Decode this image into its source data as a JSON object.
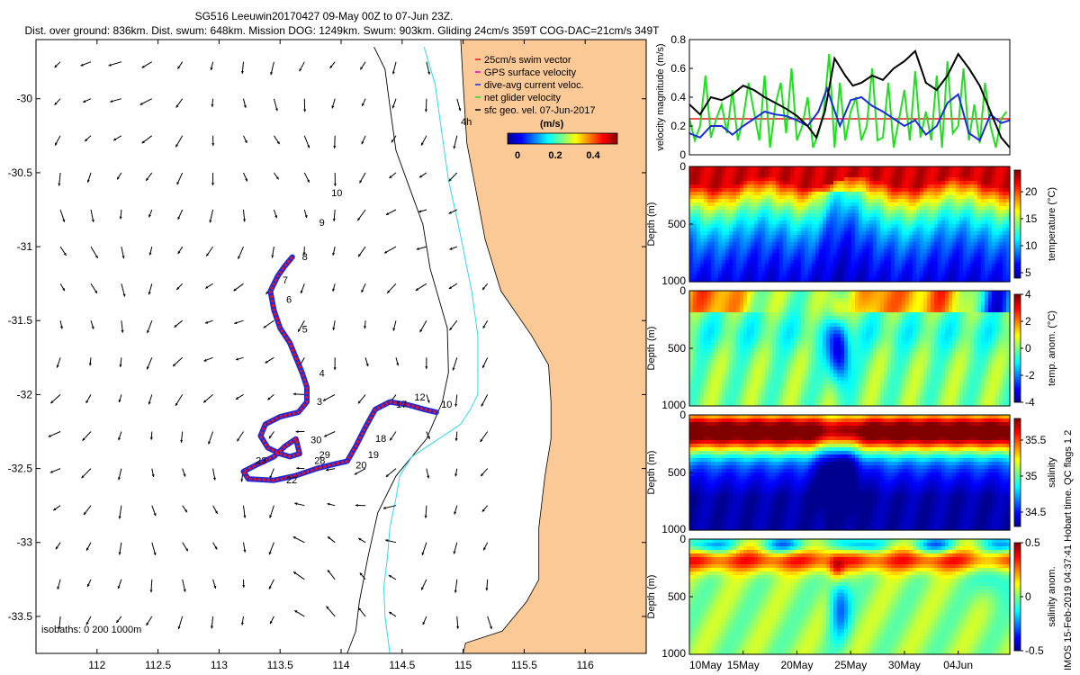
{
  "title": {
    "line1": "SG516 Leeuwin20170427 09-May 00Z to 07-Jun 23Z.",
    "line2": "Dist. over ground: 836km. Dist. swum: 648km. Mission DOG: 1249km. Swum: 903km. Gliding 24cm/s 359T COG-DAC=21cm/s 349T"
  },
  "colors": {
    "land": "#fbc996",
    "ocean": "#ffffff",
    "swim": "#e8141c",
    "gps": "#e000e0",
    "dac": "#1a2adc",
    "net": "#22dd22",
    "geo": "#000000",
    "isobath_200": "#35d7e8",
    "isobath_1000": "#000000",
    "ref_line": "#e8141c"
  },
  "side_text": "IMOS 15-Feb-2019 04:37:41 Hobart time. QC flags 1  2",
  "chart_data": [
    {
      "id": "map",
      "type": "scatter",
      "title": "",
      "xlim": [
        111.5,
        116.5
      ],
      "ylim": [
        -33.75,
        -29.6
      ],
      "x_ticks": [
        112,
        112.5,
        113,
        113.5,
        114,
        114.5,
        115,
        115.5,
        116
      ],
      "x_tick_labels": [
        "112",
        "112.5",
        "113",
        "113.5",
        "114",
        "114.5",
        "115",
        "115.5",
        "116"
      ],
      "y_ticks": [
        -30,
        -30.5,
        -31,
        -31.5,
        -32,
        -32.5,
        -33,
        -33.5
      ],
      "y_tick_labels": [
        "-30",
        "-30.5",
        "-31",
        "-31.5",
        "-32",
        "-32.5",
        "-33",
        "-33.5"
      ],
      "legend": {
        "placement": "top-right",
        "items": [
          "25cm/s swim vector",
          "GPS surface velocity",
          "dive-avg current veloc.",
          "net glider velocity",
          "sfc geo. vel. 07-Jun-2017"
        ]
      },
      "colorbar": {
        "interval_label": "4h",
        "unit_label": "(m/s)",
        "tick_labels": [
          "0",
          "0.2",
          "0.4"
        ],
        "range": [
          0,
          0.5
        ]
      },
      "isobaths_label": "isobaths: 0   200  1000m",
      "coastline": [
        [
          116.5,
          -29.6
        ],
        [
          114.98,
          -29.6
        ],
        [
          115.0,
          -29.9
        ],
        [
          115.03,
          -30.3
        ],
        [
          115.1,
          -30.6
        ],
        [
          115.18,
          -30.95
        ],
        [
          115.31,
          -31.3
        ],
        [
          115.56,
          -31.6
        ],
        [
          115.7,
          -31.8
        ],
        [
          115.72,
          -32.05
        ],
        [
          115.72,
          -32.3
        ],
        [
          115.67,
          -32.55
        ],
        [
          115.62,
          -32.9
        ],
        [
          115.62,
          -33.25
        ],
        [
          115.52,
          -33.4
        ],
        [
          115.32,
          -33.6
        ],
        [
          115.02,
          -33.68
        ],
        [
          115.0,
          -33.75
        ],
        [
          116.5,
          -33.75
        ]
      ],
      "isobath_200": [
        [
          114.68,
          -29.65
        ],
        [
          114.77,
          -29.9
        ],
        [
          114.82,
          -30.2
        ],
        [
          114.88,
          -30.55
        ],
        [
          114.96,
          -30.85
        ],
        [
          115.07,
          -31.3
        ],
        [
          115.12,
          -31.6
        ],
        [
          115.12,
          -31.9
        ],
        [
          115.12,
          -32.0
        ],
        [
          115.06,
          -32.1
        ],
        [
          114.98,
          -32.2
        ],
        [
          114.8,
          -32.3
        ],
        [
          114.58,
          -32.42
        ],
        [
          114.48,
          -32.55
        ],
        [
          114.45,
          -32.7
        ],
        [
          114.4,
          -32.9
        ],
        [
          114.38,
          -33.1
        ],
        [
          114.35,
          -33.3
        ],
        [
          114.36,
          -33.5
        ],
        [
          114.4,
          -33.75
        ]
      ],
      "isobath_1000": [
        [
          114.27,
          -29.65
        ],
        [
          114.36,
          -29.8
        ],
        [
          114.4,
          -30.05
        ],
        [
          114.45,
          -30.35
        ],
        [
          114.56,
          -30.6
        ],
        [
          114.67,
          -30.85
        ],
        [
          114.73,
          -31.15
        ],
        [
          114.87,
          -31.55
        ],
        [
          114.88,
          -31.85
        ],
        [
          114.83,
          -32.05
        ],
        [
          114.7,
          -32.3
        ],
        [
          114.45,
          -32.55
        ],
        [
          114.3,
          -32.8
        ],
        [
          114.22,
          -33.1
        ],
        [
          114.15,
          -33.4
        ],
        [
          114.12,
          -33.6
        ],
        [
          114.05,
          -33.75
        ]
      ],
      "glider_track": [
        [
          113.6,
          -31.07
        ],
        [
          113.54,
          -31.13
        ],
        [
          113.48,
          -31.2
        ],
        [
          113.42,
          -31.3
        ],
        [
          113.45,
          -31.43
        ],
        [
          113.5,
          -31.55
        ],
        [
          113.58,
          -31.65
        ],
        [
          113.63,
          -31.75
        ],
        [
          113.68,
          -31.85
        ],
        [
          113.72,
          -31.95
        ],
        [
          113.72,
          -32.05
        ],
        [
          113.65,
          -32.12
        ],
        [
          113.5,
          -32.15
        ],
        [
          113.38,
          -32.2
        ],
        [
          113.34,
          -32.28
        ],
        [
          113.4,
          -32.36
        ],
        [
          113.5,
          -32.4
        ],
        [
          113.58,
          -32.42
        ],
        [
          113.66,
          -32.4
        ],
        [
          113.63,
          -32.3
        ],
        [
          113.54,
          -32.35
        ],
        [
          113.45,
          -32.42
        ],
        [
          113.32,
          -32.47
        ],
        [
          113.2,
          -32.52
        ],
        [
          113.24,
          -32.57
        ],
        [
          113.45,
          -32.58
        ],
        [
          113.62,
          -32.55
        ],
        [
          113.8,
          -32.5
        ],
        [
          113.95,
          -32.47
        ],
        [
          114.05,
          -32.45
        ],
        [
          114.12,
          -32.35
        ],
        [
          114.2,
          -32.22
        ],
        [
          114.28,
          -32.1
        ],
        [
          114.4,
          -32.05
        ],
        [
          114.55,
          -32.07
        ],
        [
          114.68,
          -32.1
        ],
        [
          114.78,
          -32.12
        ]
      ],
      "track_labels": [
        {
          "lon": 113.68,
          "lat": -31.09,
          "text": "8"
        },
        {
          "lon": 113.52,
          "lat": -31.25,
          "text": "7"
        },
        {
          "lon": 113.55,
          "lat": -31.38,
          "text": "6"
        },
        {
          "lon": 113.68,
          "lat": -31.58,
          "text": "5"
        },
        {
          "lon": 113.82,
          "lat": -31.88,
          "text": "4"
        },
        {
          "lon": 113.8,
          "lat": -32.07,
          "text": "3"
        },
        {
          "lon": 113.92,
          "lat": -30.66,
          "text": "10"
        },
        {
          "lon": 113.82,
          "lat": -30.86,
          "text": "9"
        },
        {
          "lon": 114.6,
          "lat": -32.04,
          "text": "12"
        },
        {
          "lon": 114.45,
          "lat": -32.09,
          "text": "17"
        },
        {
          "lon": 114.82,
          "lat": -32.09,
          "text": "10"
        },
        {
          "lon": 114.28,
          "lat": -32.32,
          "text": "18"
        },
        {
          "lon": 114.22,
          "lat": -32.43,
          "text": "19"
        },
        {
          "lon": 114.12,
          "lat": -32.5,
          "text": "20"
        },
        {
          "lon": 113.82,
          "lat": -32.43,
          "text": "29"
        },
        {
          "lon": 113.75,
          "lat": -32.33,
          "text": "30"
        },
        {
          "lon": 113.78,
          "lat": -32.47,
          "text": "28"
        },
        {
          "lon": 113.3,
          "lat": -32.47,
          "text": "23"
        },
        {
          "lon": 113.55,
          "lat": -32.6,
          "text": "22"
        }
      ]
    },
    {
      "id": "velocity",
      "type": "line",
      "ylabel": "velocity magnitude (m/s)",
      "xlim": [
        0,
        29.8
      ],
      "ylim": [
        0,
        0.8
      ],
      "y_ticks": [
        0,
        0.2,
        0.4,
        0.6,
        0.8
      ],
      "y_tick_labels": [
        "0",
        "0.2",
        "0.4",
        "0.6",
        "0.8"
      ],
      "reference_value": 0.25,
      "series": [
        {
          "name": "black",
          "x": [
            0,
            1,
            2,
            3,
            4,
            5,
            6,
            7,
            8,
            9,
            10,
            11,
            11.8,
            12.6,
            13.5,
            14.5,
            15.2,
            16,
            17,
            18,
            19,
            20,
            21,
            22,
            23,
            24,
            25,
            26,
            27,
            28,
            29,
            29.8
          ],
          "values": [
            0.35,
            0.28,
            0.4,
            0.38,
            0.42,
            0.48,
            0.45,
            0.4,
            0.36,
            0.32,
            0.27,
            0.2,
            0.12,
            0.3,
            0.67,
            0.55,
            0.48,
            0.5,
            0.55,
            0.52,
            0.6,
            0.65,
            0.72,
            0.5,
            0.45,
            0.55,
            0.7,
            0.6,
            0.48,
            0.3,
            0.12,
            0.05
          ]
        },
        {
          "name": "blue",
          "x": [
            0,
            1,
            2,
            3,
            4,
            5,
            6,
            7,
            8,
            9,
            10,
            11,
            12,
            12.8,
            13.3,
            14,
            15,
            16,
            17,
            18,
            19,
            20,
            21,
            22,
            23,
            24,
            25,
            26,
            27,
            28,
            29,
            29.8
          ],
          "values": [
            0.15,
            0.12,
            0.2,
            0.2,
            0.14,
            0.2,
            0.25,
            0.3,
            0.28,
            0.27,
            0.24,
            0.2,
            0.3,
            0.46,
            0.35,
            0.2,
            0.38,
            0.4,
            0.34,
            0.3,
            0.25,
            0.2,
            0.24,
            0.14,
            0.2,
            0.36,
            0.42,
            0.15,
            0.1,
            0.28,
            0.22,
            0.24
          ]
        },
        {
          "name": "green",
          "x": [
            0,
            0.5,
            1,
            1.5,
            2,
            2.5,
            3,
            3.5,
            4,
            4.5,
            5,
            5.5,
            6,
            6.5,
            7,
            7.5,
            8,
            8.5,
            9,
            9.5,
            10,
            10.5,
            11,
            11.5,
            12,
            12.5,
            13,
            13.5,
            14,
            14.5,
            15,
            15.5,
            16,
            16.5,
            17,
            17.5,
            18,
            18.5,
            19,
            19.5,
            20,
            20.5,
            21,
            21.5,
            22,
            22.5,
            23,
            23.5,
            24,
            24.5,
            25,
            25.5,
            26,
            26.5,
            27,
            27.5,
            28,
            28.5,
            29,
            29.5
          ],
          "values": [
            0.25,
            0.1,
            0.2,
            0.55,
            0.12,
            0.25,
            0.35,
            0.15,
            0.45,
            0.1,
            0.25,
            0.5,
            0.3,
            0.1,
            0.55,
            0.05,
            0.35,
            0.5,
            0.15,
            0.6,
            0.1,
            0.2,
            0.4,
            0.05,
            0.15,
            0.3,
            0.7,
            0.05,
            0.5,
            0.1,
            0.3,
            0.4,
            0.1,
            0.2,
            0.6,
            0.1,
            0.12,
            0.5,
            0.05,
            0.25,
            0.45,
            0.1,
            0.58,
            0.12,
            0.3,
            0.1,
            0.55,
            0.05,
            0.65,
            0.15,
            0.2,
            0.6,
            0.1,
            0.35,
            0.08,
            0.5,
            0.2,
            0.05,
            0.25,
            0.3
          ]
        }
      ]
    },
    {
      "id": "temperature",
      "type": "heatmap",
      "ylabel": "Depth (m)",
      "ylim": [
        0,
        1000
      ],
      "y_ticks": [
        0,
        500,
        1000
      ],
      "y_tick_labels": [
        "0",
        "500",
        "1000"
      ],
      "colorbar_label": "temperature (°C)",
      "colorbar_range": [
        4,
        24
      ],
      "colorbar_ticks": [
        5,
        10,
        15,
        20
      ],
      "colorbar_tick_labels": [
        "5",
        "10",
        "15",
        "20"
      ]
    },
    {
      "id": "temp_anomaly",
      "type": "heatmap",
      "ylabel": "Depth (m)",
      "ylim": [
        0,
        1000
      ],
      "y_ticks": [
        0,
        500,
        1000
      ],
      "y_tick_labels": [
        "0",
        "500",
        "1000"
      ],
      "colorbar_label": "temp. anom. (°C)",
      "colorbar_range": [
        -4,
        4
      ],
      "colorbar_ticks": [
        -4,
        -2,
        0,
        2,
        4
      ],
      "colorbar_tick_labels": [
        "-4",
        "-2",
        "0",
        "2",
        "4"
      ]
    },
    {
      "id": "salinity",
      "type": "heatmap",
      "ylabel": "Depth (m)",
      "ylim": [
        0,
        1000
      ],
      "y_ticks": [
        0,
        500,
        1000
      ],
      "y_tick_labels": [
        "0",
        "500",
        "1000"
      ],
      "colorbar_label": "salinity",
      "colorbar_range": [
        34.3,
        35.8
      ],
      "colorbar_ticks": [
        34.5,
        35,
        35.5
      ],
      "colorbar_tick_labels": [
        "34.5",
        "35",
        "35.5"
      ]
    },
    {
      "id": "salinity_anomaly",
      "type": "heatmap",
      "ylabel": "Depth (m)",
      "ylim": [
        0,
        1000
      ],
      "y_ticks": [
        0,
        500,
        1000
      ],
      "y_tick_labels": [
        "0",
        "500",
        "1000"
      ],
      "colorbar_label": "salinity anom.",
      "colorbar_range": [
        -0.5,
        0.5
      ],
      "colorbar_ticks": [
        -0.5,
        0,
        0.5
      ],
      "colorbar_tick_labels": [
        "-0.5",
        "0",
        "0.5"
      ],
      "x_ticks": [
        0,
        5,
        10,
        15,
        20,
        25
      ],
      "x_tick_labels": [
        "10May",
        "15May",
        "20May",
        "25May",
        "30May",
        "04Jun"
      ]
    }
  ]
}
